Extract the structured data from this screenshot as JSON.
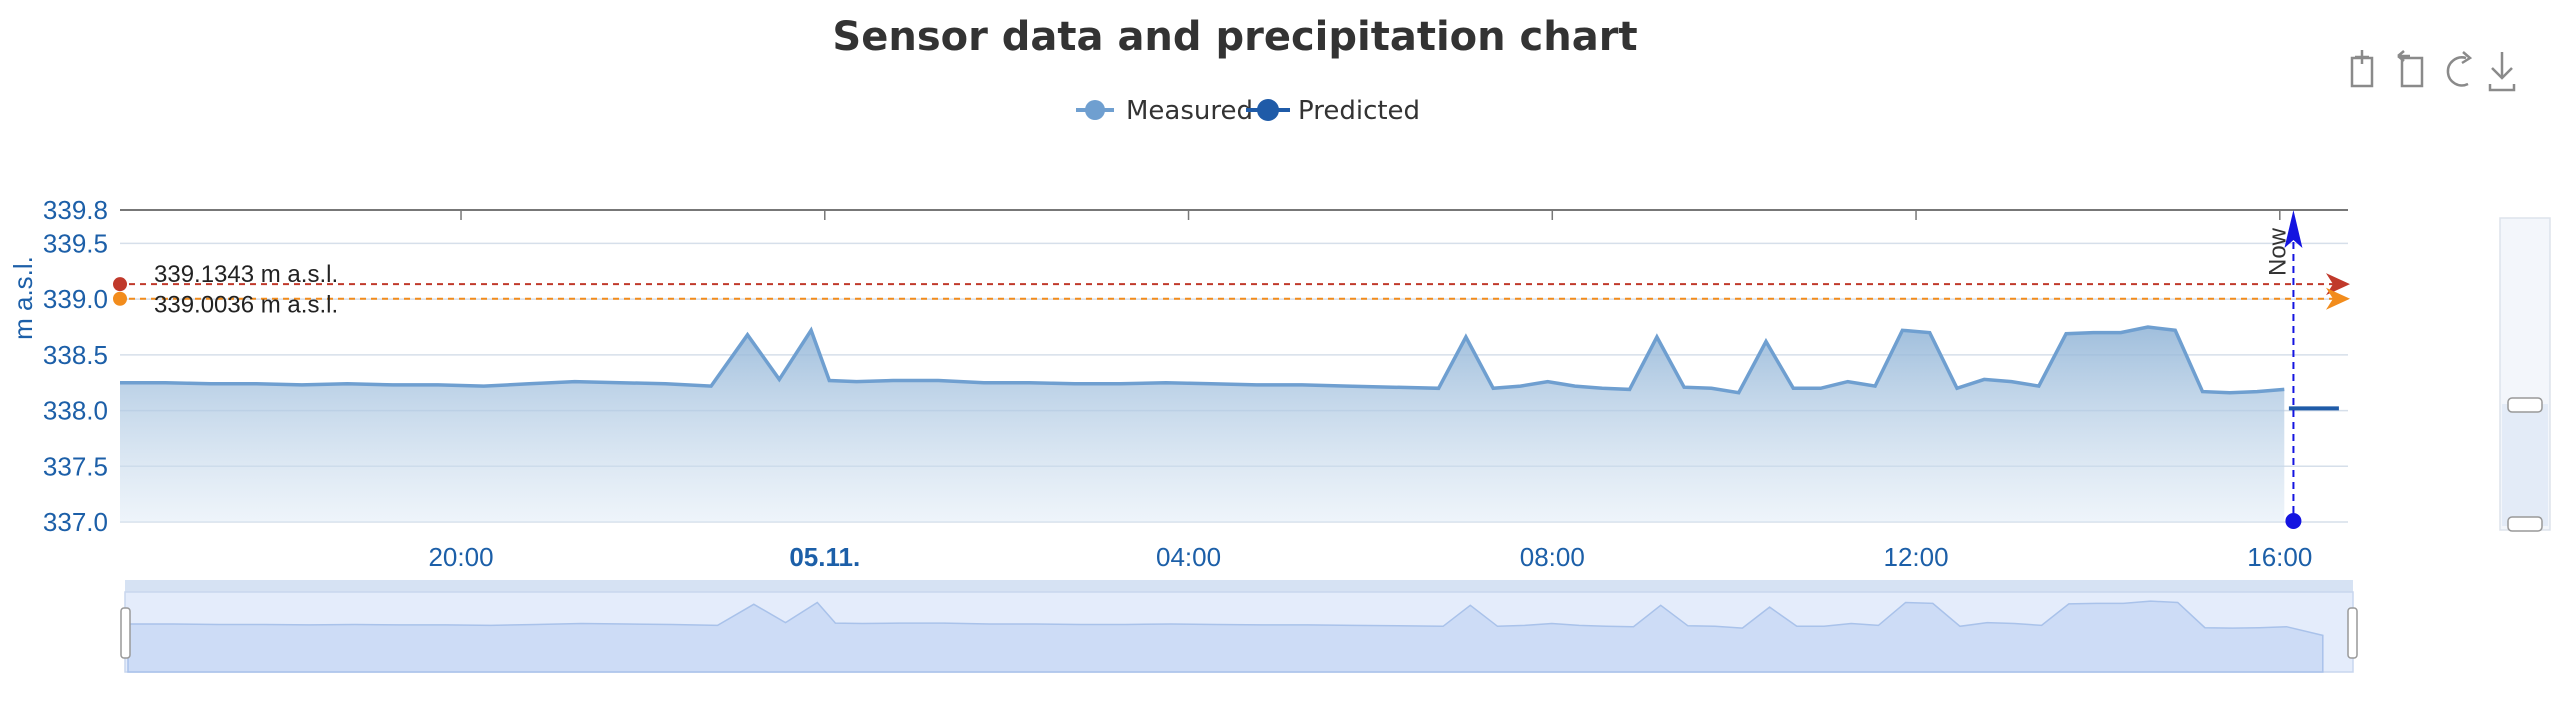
{
  "chart_data": {
    "type": "area",
    "title": "Sensor data and precipitation chart",
    "ylabel": "m a.s.l.",
    "ylim": [
      337.0,
      339.8
    ],
    "yticks": [
      "339.8",
      "339.5",
      "339.0",
      "338.5",
      "338.0",
      "337.5",
      "337.0"
    ],
    "ytick_values": [
      339.8,
      339.5,
      339.0,
      338.5,
      338.0,
      337.5,
      337.0
    ],
    "xlim": [
      0,
      24.5
    ],
    "xticks": [
      {
        "label": "20:00",
        "value": 3.75,
        "bold": false
      },
      {
        "label": "05.11.",
        "value": 7.75,
        "bold": true
      },
      {
        "label": "04:00",
        "value": 11.75,
        "bold": false
      },
      {
        "label": "08:00",
        "value": 15.75,
        "bold": false
      },
      {
        "label": "12:00",
        "value": 19.75,
        "bold": false
      },
      {
        "label": "16:00",
        "value": 23.75,
        "bold": false
      }
    ],
    "legend": [
      {
        "name": "Measured",
        "color": "#6f9fd0"
      },
      {
        "name": "Predicted",
        "color": "#1f5ba8"
      }
    ],
    "series": [
      {
        "name": "Measured",
        "color": "#6f9fd0",
        "x": [
          0,
          0.5,
          1,
          1.5,
          2,
          2.5,
          3,
          3.5,
          4,
          4.5,
          5,
          5.5,
          6,
          6.5,
          6.9,
          7.25,
          7.6,
          7.8,
          8.1,
          8.5,
          9,
          9.5,
          10,
          10.5,
          11,
          11.5,
          12,
          12.5,
          13,
          13.5,
          14,
          14.5,
          14.8,
          15.1,
          15.4,
          15.7,
          16.0,
          16.3,
          16.6,
          16.9,
          17.2,
          17.5,
          17.8,
          18.1,
          18.4,
          18.7,
          19.0,
          19.3,
          19.6,
          19.9,
          20.2,
          20.5,
          20.8,
          21.1,
          21.4,
          21.7,
          22.0,
          22.3,
          22.6,
          22.9,
          23.2,
          23.5,
          23.8
        ],
        "values": [
          338.25,
          338.25,
          338.24,
          338.24,
          338.23,
          338.24,
          338.23,
          338.23,
          338.22,
          338.24,
          338.26,
          338.25,
          338.24,
          338.22,
          338.68,
          338.28,
          338.72,
          338.27,
          338.26,
          338.27,
          338.27,
          338.25,
          338.25,
          338.24,
          338.24,
          338.25,
          338.24,
          338.23,
          338.23,
          338.22,
          338.21,
          338.2,
          338.66,
          338.2,
          338.22,
          338.26,
          338.22,
          338.2,
          338.19,
          338.66,
          338.21,
          338.2,
          338.16,
          338.62,
          338.2,
          338.2,
          338.26,
          338.22,
          338.72,
          338.7,
          338.2,
          338.28,
          338.26,
          338.22,
          338.69,
          338.7,
          338.7,
          338.75,
          338.72,
          338.17,
          338.16,
          338.17,
          338.19
        ]
      },
      {
        "name": "Predicted",
        "color": "#1f5ba8",
        "x": [
          23.85,
          24.4
        ],
        "values": [
          338.02,
          338.02
        ]
      }
    ],
    "thresholds": [
      {
        "label": "339.1343 m a.s.l.",
        "value": 339.1343,
        "color": "#c0392b"
      },
      {
        "label": "339.0036 m a.s.l.",
        "value": 339.0036,
        "color": "#f28c1c"
      }
    ],
    "now_marker": {
      "label": "Now",
      "x": 23.9,
      "color": "#1414e0"
    }
  },
  "toolbar": {
    "items": [
      {
        "name": "zoom-in-icon"
      },
      {
        "name": "zoom-reset-icon"
      },
      {
        "name": "refresh-icon"
      },
      {
        "name": "download-icon"
      }
    ]
  }
}
